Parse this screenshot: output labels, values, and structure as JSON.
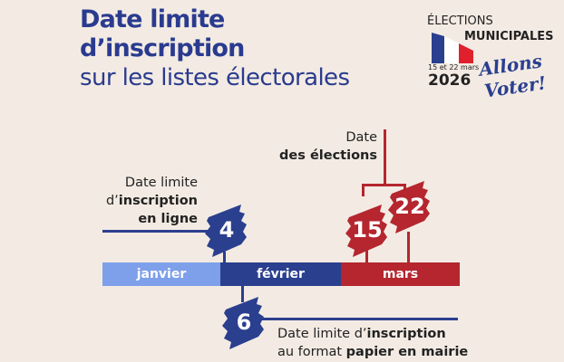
{
  "title": {
    "line1": "Date limite",
    "line2": "d’inscription",
    "line3": "sur les listes électorales"
  },
  "logo": {
    "elections": "ÉLECTIONS",
    "municipales": "MUNICIPALES",
    "dates": "15 et 22 mars",
    "year": "2026",
    "slogan_line1": "Allons",
    "slogan_line2": "Voter!"
  },
  "timeline": {
    "months": [
      {
        "label": "janvier",
        "color": "#7ea0ea"
      },
      {
        "label": "février",
        "color": "#2b3f8f"
      },
      {
        "label": "mars",
        "color": "#b5262f"
      }
    ],
    "events": [
      {
        "day": "4",
        "color": "#2b3f8f",
        "label_pre": "Date limite",
        "label_mid_pre": "d’",
        "label_mid_bold": "inscription",
        "label_bold": "en ligne"
      },
      {
        "day": "6",
        "color": "#2b3f8f",
        "label_pre": "Date limite d’",
        "label_bold1": "inscription",
        "label_pre2": "au format ",
        "label_bold2": "papier en mairie"
      },
      {
        "day": "15",
        "color": "#b5262f"
      },
      {
        "day": "22",
        "color": "#b5262f"
      }
    ],
    "elections_label": {
      "line1": "Date",
      "line2": "des élections"
    }
  },
  "colors": {
    "navy": "#2b3f8f",
    "light_blue": "#7ea0ea",
    "red": "#b5262f",
    "background": "#f3ebe3"
  }
}
